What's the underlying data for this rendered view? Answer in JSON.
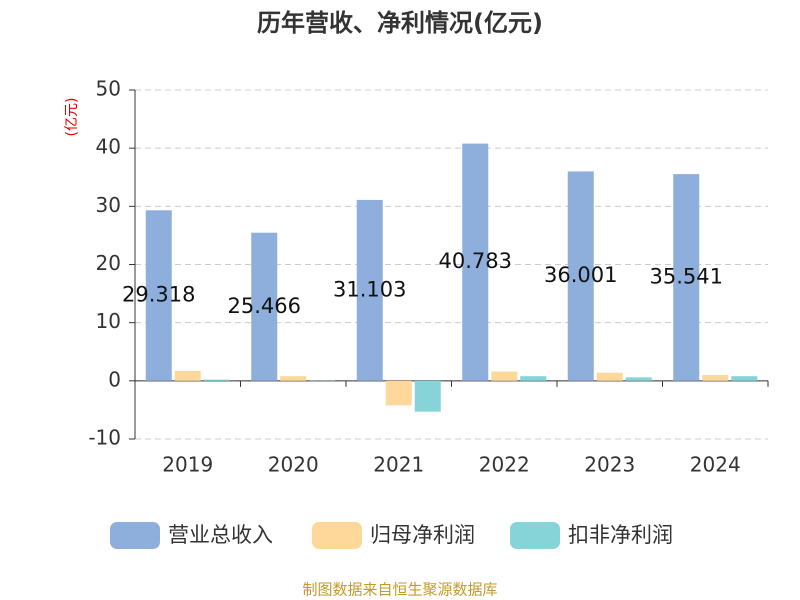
{
  "chart_data": {
    "type": "bar",
    "title": "历年营收、净利情况(亿元)",
    "y_label": "(亿元)",
    "categories": [
      "2019",
      "2020",
      "2021",
      "2022",
      "2023",
      "2024"
    ],
    "series": [
      {
        "name": "营业总收入",
        "color": "#8eaedb",
        "values": [
          29.318,
          25.466,
          31.103,
          40.783,
          36.001,
          35.541
        ],
        "value_labels": [
          "29.318",
          "25.466",
          "31.103",
          "40.783",
          "36.001",
          "35.541"
        ]
      },
      {
        "name": "归母净利润",
        "color": "#fdd89a",
        "values": [
          1.7,
          0.8,
          -4.2,
          1.6,
          1.4,
          1.0
        ]
      },
      {
        "name": "扣非净利润",
        "color": "#86d4d8",
        "values": [
          0.2,
          0.05,
          -5.3,
          0.8,
          0.6,
          0.8
        ]
      }
    ],
    "ylim": [
      -10,
      50
    ],
    "yticks": [
      -10,
      0,
      10,
      20,
      30,
      40,
      50
    ],
    "grid": true,
    "source": "制图数据来自恒生聚源数据库"
  }
}
